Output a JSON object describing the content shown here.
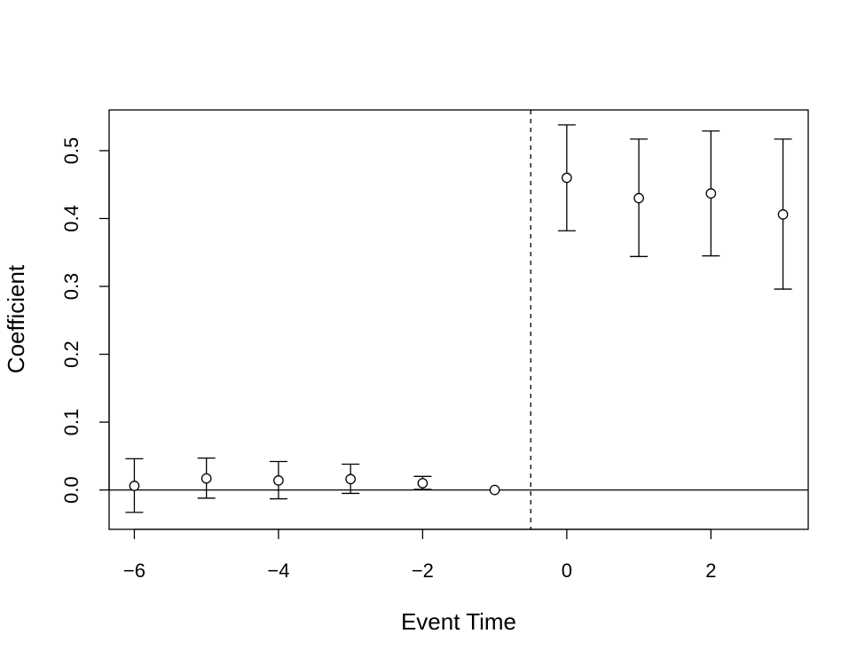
{
  "chart_data": {
    "type": "scatter",
    "title": "",
    "xlabel": "Event Time",
    "ylabel": "Coefficient",
    "xlim": [
      -6.35,
      3.35
    ],
    "ylim": [
      -0.058,
      0.56
    ],
    "x_ticks": [
      -6,
      -4,
      -2,
      0,
      2
    ],
    "x_tick_labels": [
      "−6",
      "−4",
      "−2",
      "0",
      "2"
    ],
    "y_ticks": [
      0.0,
      0.1,
      0.2,
      0.3,
      0.4,
      0.5
    ],
    "y_tick_labels": [
      "0.0",
      "0.1",
      "0.2",
      "0.3",
      "0.4",
      "0.5"
    ],
    "grid": false,
    "reference_lines": {
      "horizontal_y": 0,
      "vertical_dashed_x": -0.5
    },
    "series": [
      {
        "x": [
          -6,
          -5,
          -4,
          -3,
          -2,
          -1,
          0,
          1,
          2,
          3
        ],
        "y": [
          0.006,
          0.017,
          0.014,
          0.016,
          0.01,
          0.0,
          0.46,
          0.43,
          0.437,
          0.406
        ],
        "lower": [
          -0.033,
          -0.012,
          -0.013,
          -0.005,
          0.001,
          0.0,
          0.382,
          0.344,
          0.345,
          0.296
        ],
        "upper": [
          0.046,
          0.047,
          0.042,
          0.038,
          0.02,
          0.0,
          0.538,
          0.517,
          0.529,
          0.517
        ]
      }
    ]
  }
}
